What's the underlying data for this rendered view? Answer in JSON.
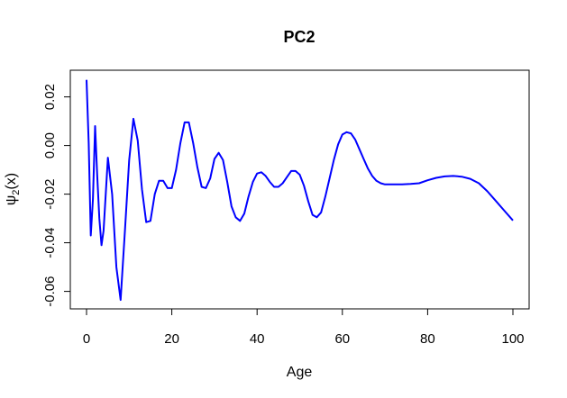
{
  "chart_data": {
    "type": "line",
    "title": "PC2",
    "xlabel": "Age",
    "ylabel_symbol": "ψ",
    "ylabel_sub": "2",
    "ylabel_arg": "(x)",
    "xlim": [
      0,
      100
    ],
    "ylim": [
      -0.066,
      0.03
    ],
    "xticks": [
      0,
      20,
      40,
      60,
      80,
      100
    ],
    "xtick_labels": [
      "0",
      "20",
      "40",
      "60",
      "80",
      "100"
    ],
    "yticks": [
      0.02,
      0.0,
      -0.02,
      -0.04,
      -0.06
    ],
    "ytick_labels": [
      "0.02",
      "0.00",
      "-0.02",
      "-0.04",
      "-0.06"
    ],
    "grid": false,
    "legend": "none",
    "series": [
      {
        "color": "#0000ff",
        "x": [
          0,
          0.5,
          1,
          1.5,
          2,
          2.5,
          3,
          3.5,
          4,
          5,
          6,
          7,
          8,
          9,
          10,
          11,
          12,
          13,
          14,
          15,
          16,
          17,
          18,
          19,
          20,
          21,
          22,
          23,
          24,
          25,
          26,
          27,
          28,
          29,
          30,
          31,
          32,
          33,
          34,
          35,
          36,
          37,
          38,
          39,
          40,
          41,
          42,
          43,
          44,
          45,
          46,
          47,
          48,
          49,
          50,
          51,
          52,
          53,
          54,
          55,
          56,
          57,
          58,
          59,
          60,
          61,
          62,
          63,
          64,
          65,
          66,
          67,
          68,
          69,
          70,
          72,
          74,
          76,
          78,
          80,
          82,
          84,
          86,
          88,
          90,
          92,
          94,
          96,
          98,
          100
        ],
        "y": [
          0.027,
          0.001,
          -0.037,
          -0.022,
          0.008,
          -0.012,
          -0.03,
          -0.041,
          -0.035,
          -0.005,
          -0.02,
          -0.05,
          -0.0635,
          -0.035,
          -0.006,
          0.011,
          0.002,
          -0.018,
          -0.0315,
          -0.031,
          -0.02,
          -0.0145,
          -0.0145,
          -0.0175,
          -0.0175,
          -0.01,
          0.001,
          0.0095,
          0.0095,
          0.001,
          -0.009,
          -0.017,
          -0.0175,
          -0.0135,
          -0.0055,
          -0.003,
          -0.006,
          -0.015,
          -0.025,
          -0.0295,
          -0.031,
          -0.028,
          -0.021,
          -0.015,
          -0.0115,
          -0.011,
          -0.0125,
          -0.015,
          -0.017,
          -0.017,
          -0.0155,
          -0.013,
          -0.0105,
          -0.0105,
          -0.012,
          -0.0165,
          -0.023,
          -0.0285,
          -0.0295,
          -0.0275,
          -0.021,
          -0.0135,
          -0.006,
          0.0005,
          0.0045,
          0.0055,
          0.005,
          0.0025,
          -0.0015,
          -0.0055,
          -0.0095,
          -0.0125,
          -0.0145,
          -0.0155,
          -0.016,
          -0.016,
          -0.016,
          -0.0158,
          -0.0155,
          -0.0143,
          -0.0133,
          -0.0127,
          -0.0125,
          -0.0128,
          -0.0137,
          -0.0155,
          -0.0188,
          -0.0228,
          -0.0268,
          -0.0308
        ]
      }
    ]
  }
}
